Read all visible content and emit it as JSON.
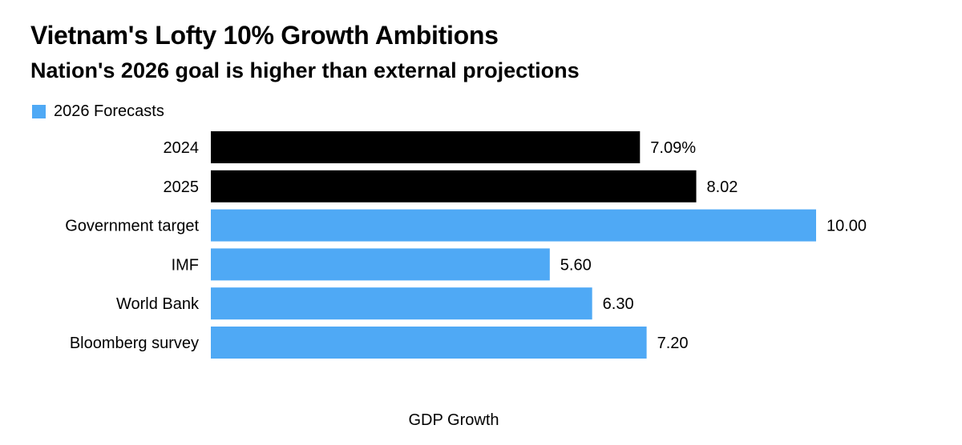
{
  "title": "Vietnam's Lofty 10% Growth Ambitions",
  "subtitle": "Nation's 2026 goal is higher than external projections",
  "legend": {
    "label": "2026 Forecasts",
    "color": "#4FA9F5"
  },
  "chart_data": {
    "type": "bar",
    "orientation": "horizontal",
    "title": "Vietnam's Lofty 10% Growth Ambitions",
    "subtitle": "Nation's 2026 goal is higher than external projections",
    "xlabel": "GDP Growth",
    "ylabel": "",
    "xlim": [
      0,
      10.5
    ],
    "grid": false,
    "legend": [
      {
        "label": "2026 Forecasts",
        "color": "#4FA9F5"
      }
    ],
    "categories": [
      "2024",
      "2025",
      "Government target",
      "IMF",
      "World Bank",
      "Bloomberg survey"
    ],
    "values": [
      7.09,
      8.02,
      10.0,
      5.6,
      6.3,
      7.2
    ],
    "value_labels": [
      "7.09%",
      "8.02",
      "10.00",
      "5.60",
      "6.30",
      "7.20"
    ],
    "groups": [
      "actual",
      "actual",
      "forecast",
      "forecast",
      "forecast",
      "forecast"
    ],
    "colors": {
      "actual": "#000000",
      "forecast": "#4FA9F5"
    }
  }
}
